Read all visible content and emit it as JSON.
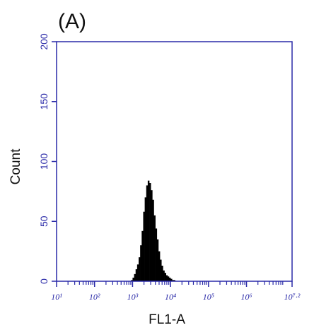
{
  "figure": {
    "panel_label": "(A)"
  },
  "chart_data": {
    "type": "histogram",
    "title": "",
    "xlabel": "FL1-A",
    "ylabel": "Count",
    "xscale": "log",
    "xlim": [
      1,
      7.2
    ],
    "ylim": [
      0,
      200
    ],
    "x_ticks": [
      {
        "value": 1,
        "label": "10¹"
      },
      {
        "value": 2,
        "label": "10²"
      },
      {
        "value": 3,
        "label": "10³"
      },
      {
        "value": 4,
        "label": "10⁴"
      },
      {
        "value": 5,
        "label": "10⁵"
      },
      {
        "value": 6,
        "label": "10⁶"
      },
      {
        "value": 7.2,
        "label": "10⁷·²"
      }
    ],
    "y_ticks": [
      0,
      50,
      100,
      150,
      200
    ],
    "grid": false,
    "legend": "none",
    "colors": {
      "axis": "#2a2aa8",
      "bars": "#000000"
    },
    "log10_bin_centers": [
      2.98,
      3.02,
      3.06,
      3.1,
      3.14,
      3.18,
      3.22,
      3.26,
      3.3,
      3.34,
      3.38,
      3.42,
      3.46,
      3.5,
      3.54,
      3.58,
      3.62,
      3.66,
      3.7,
      3.74,
      3.78,
      3.82,
      3.86,
      3.9,
      3.94,
      3.98,
      4.02,
      4.06,
      4.1,
      4.14
    ],
    "counts": [
      1,
      3,
      6,
      10,
      14,
      20,
      30,
      42,
      58,
      70,
      80,
      84,
      82,
      76,
      68,
      55,
      44,
      35,
      25,
      18,
      13,
      9,
      7,
      5,
      4,
      3,
      2,
      1,
      1,
      0
    ]
  }
}
